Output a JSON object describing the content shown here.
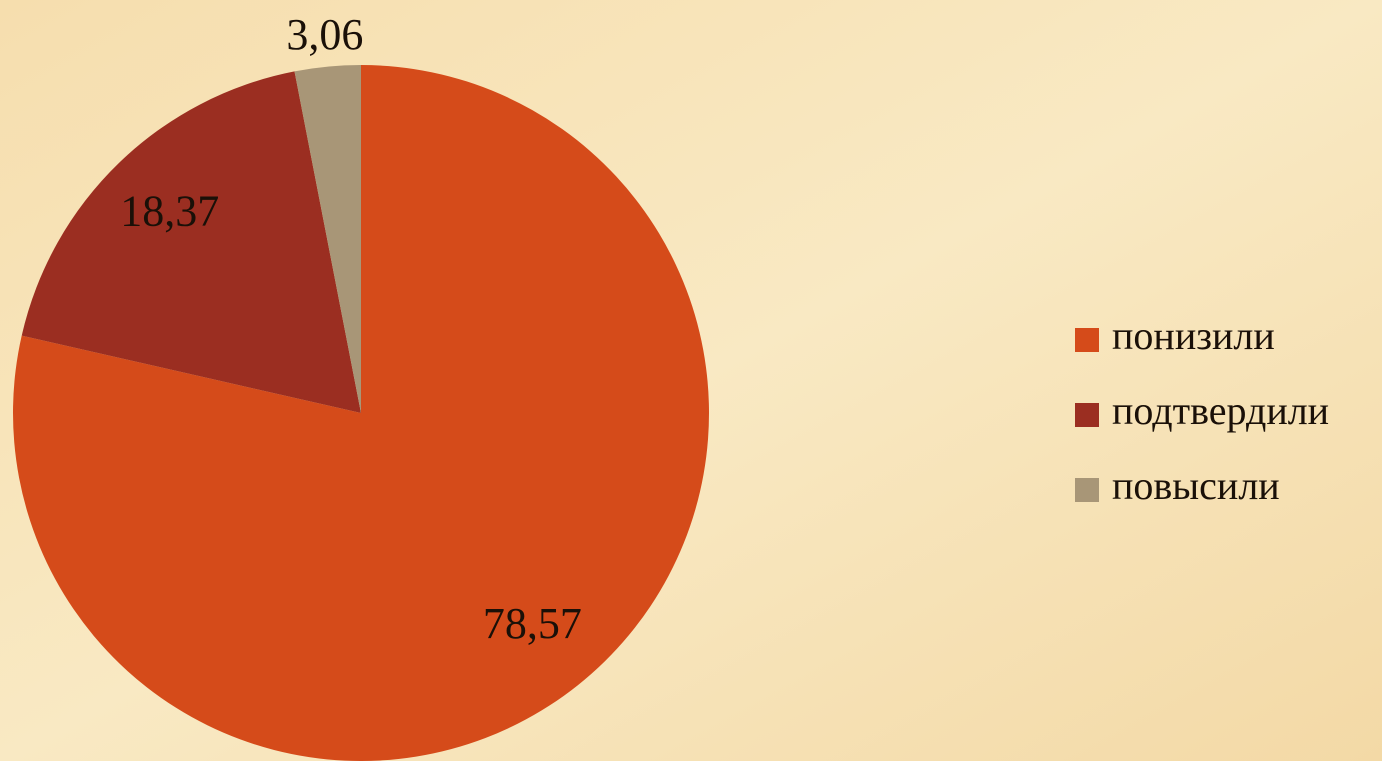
{
  "chart_data": {
    "type": "pie",
    "categories": [
      "понизили",
      "подтвердили",
      "повысили"
    ],
    "values": [
      78.57,
      18.37,
      3.06
    ],
    "value_labels": [
      "78,57",
      "18,37",
      "3,06"
    ],
    "colors": [
      "#d54b1a",
      "#9b2e21",
      "#a89677"
    ],
    "legend": "right"
  }
}
